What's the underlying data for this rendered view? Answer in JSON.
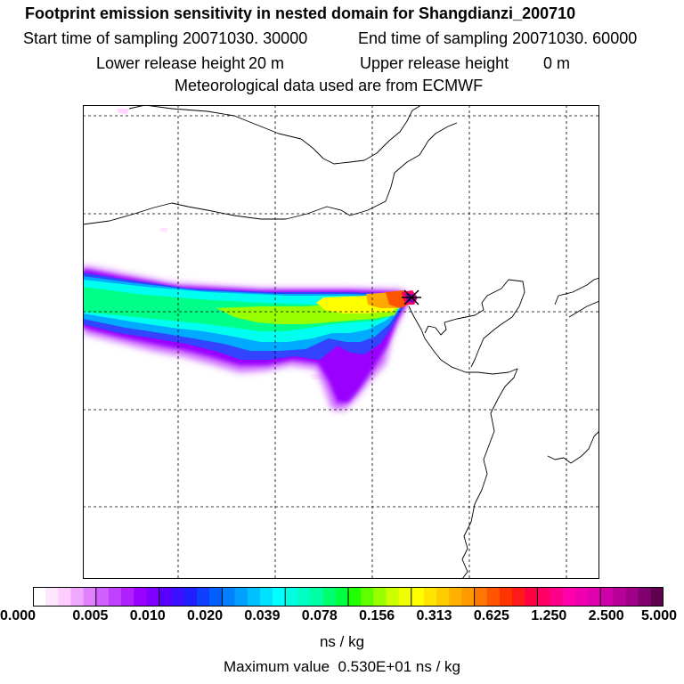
{
  "header": {
    "title": "Footprint emission sensitivity in nested domain for Shangdianzi_200710",
    "start_label": "Start time of sampling 20071030. 30000",
    "end_label": "End time of sampling 20071030. 60000",
    "lower_label": "Lower release height",
    "lower_value": "20 m",
    "upper_label": "Upper release height",
    "upper_value": "0 m",
    "met_label": "Meteorological data used are from ECMWF"
  },
  "map": {
    "receptor_name": "Shangdianzi",
    "plume_colors": [
      "#cc66ff",
      "#9900ff",
      "#3344ff",
      "#00aaff",
      "#00ffee",
      "#00ff88",
      "#99ff00",
      "#ffff00",
      "#ffaa00",
      "#ff5500",
      "#ff0066",
      "#8800aa"
    ]
  },
  "colorbar": {
    "ticks": [
      "0.000",
      "0.005",
      "0.010",
      "0.020",
      "0.039",
      "0.078",
      "0.156",
      "0.313",
      "0.625",
      "1.250",
      "2.500",
      "5.000"
    ],
    "colors": [
      [
        "#ffffff",
        "#ffe6ff",
        "#ffccff",
        "#f0a8ff",
        "#e080ff"
      ],
      [
        "#d060ff",
        "#c040ff",
        "#b020ff",
        "#9a00ff",
        "#8000ff"
      ],
      [
        "#5a00ff",
        "#3a10ff",
        "#2020ff",
        "#1040ff",
        "#0060ff"
      ],
      [
        "#0080ff",
        "#00a0ff",
        "#00c0ff",
        "#00e0ff",
        "#00ffff"
      ],
      [
        "#00ffe0",
        "#00ffc0",
        "#00ffa0",
        "#00ff70",
        "#00ff40"
      ],
      [
        "#20ff00",
        "#60ff00",
        "#99ff00",
        "#ccff00",
        "#eeff00"
      ],
      [
        "#ffff00",
        "#ffe400",
        "#ffcc00",
        "#ffb000",
        "#ff9900"
      ],
      [
        "#ff7700",
        "#ff5500",
        "#ff3300",
        "#ff1a1a",
        "#ff0040"
      ],
      [
        "#ff0066",
        "#ff0088",
        "#ff00aa",
        "#f000b0",
        "#e000b0"
      ],
      [
        "#d000a8",
        "#b80098",
        "#a00088",
        "#800070",
        "#600050"
      ]
    ],
    "units": "ns / kg",
    "max_label": "Maximum value",
    "max_value": "0.530E+01 ns / kg"
  }
}
